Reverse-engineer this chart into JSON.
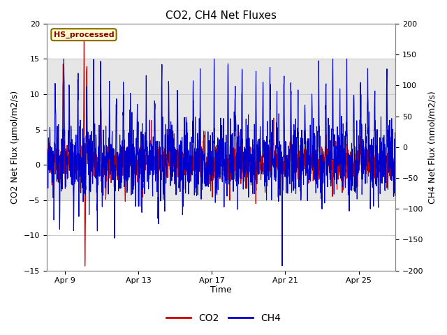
{
  "title": "CO2, CH4 Net Fluxes",
  "xlabel": "Time",
  "ylabel_left": "CO2 Net Flux (μmol/m2/s)",
  "ylabel_right": "CH4 Net Flux (nmol/m2/s)",
  "ylim_left": [
    -15,
    20
  ],
  "ylim_right": [
    -200,
    200
  ],
  "yticks_left": [
    -15,
    -10,
    -5,
    0,
    5,
    10,
    15,
    20
  ],
  "yticks_right": [
    -200,
    -150,
    -100,
    -50,
    0,
    50,
    100,
    150,
    200
  ],
  "xtick_labels": [
    "Apr 9",
    "Apr 13",
    "Apr 17",
    "Apr 21",
    "Apr 25"
  ],
  "xtick_positions": [
    1,
    5,
    9,
    13,
    17
  ],
  "xlim": [
    0,
    19
  ],
  "label_box_text": "HS_processed",
  "label_box_facecolor": "#ffffcc",
  "label_box_edgecolor": "#886600",
  "label_box_textcolor": "#880000",
  "co2_color": "#cc0000",
  "ch4_color": "#0000cc",
  "co2_linewidth": 0.8,
  "ch4_linewidth": 0.8,
  "background_color": "#ffffff",
  "grid_color": "#c8c8c8",
  "shaded_band_color": "#e0e0e0",
  "shaded_band_alpha": 0.8,
  "shaded_band_ymin": -5.0,
  "shaded_band_ymax": 15.0,
  "legend_co2": "CO2",
  "legend_ch4": "CH4",
  "n_points": 2000,
  "seed": 123
}
